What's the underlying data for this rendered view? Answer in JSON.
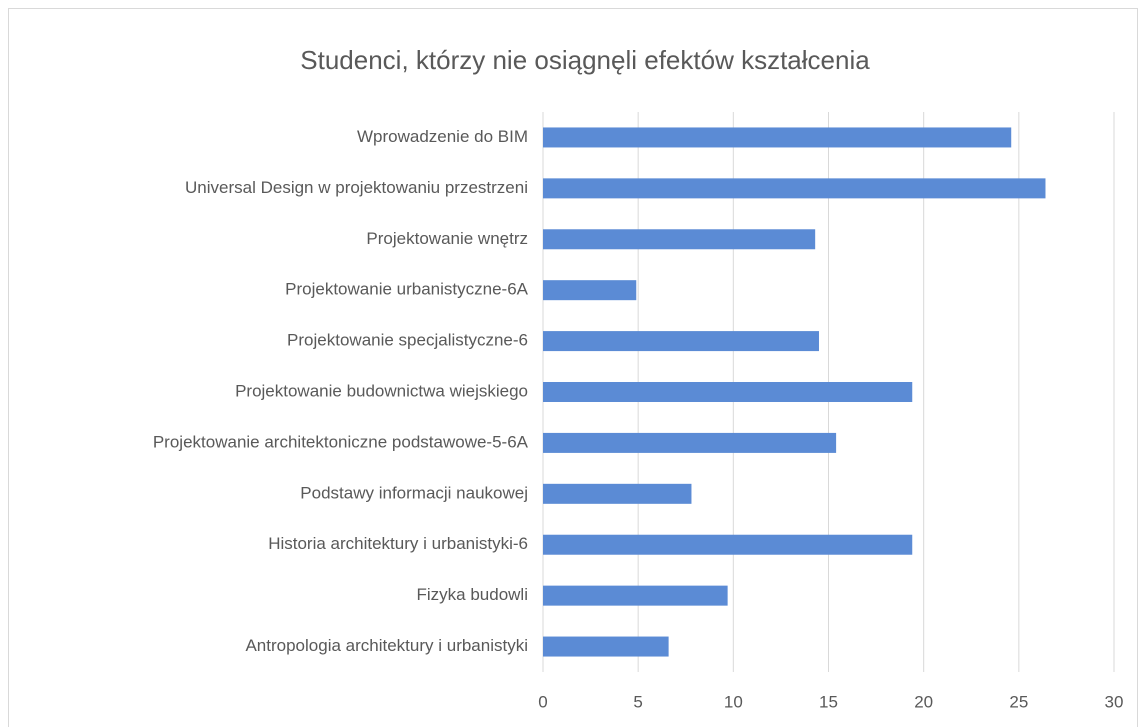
{
  "chart_data": {
    "type": "barh",
    "title": "Studenci, którzy nie osiągnęli efektów kształcenia",
    "categories": [
      "Wprowadzenie do BIM",
      "Universal Design w projektowaniu przestrzeni",
      "Projektowanie wnętrz",
      "Projektowanie urbanistyczne-6A",
      "Projektowanie specjalistyczne-6",
      "Projektowanie budownictwa wiejskiego",
      "Projektowanie architektoniczne podstawowe-5-6A",
      "Podstawy informacji naukowej",
      "Historia architektury i urbanistyki-6",
      "Fizyka budowli",
      "Antropologia architektury i urbanistyki"
    ],
    "values": [
      24.6,
      26.4,
      14.3,
      4.9,
      14.5,
      19.4,
      15.4,
      7.8,
      19.4,
      9.7,
      6.6
    ],
    "color": "#5b8bd5",
    "xlim": [
      0,
      30
    ],
    "xticks": [
      0,
      5,
      10,
      15,
      20,
      25,
      30
    ],
    "grid": true
  }
}
